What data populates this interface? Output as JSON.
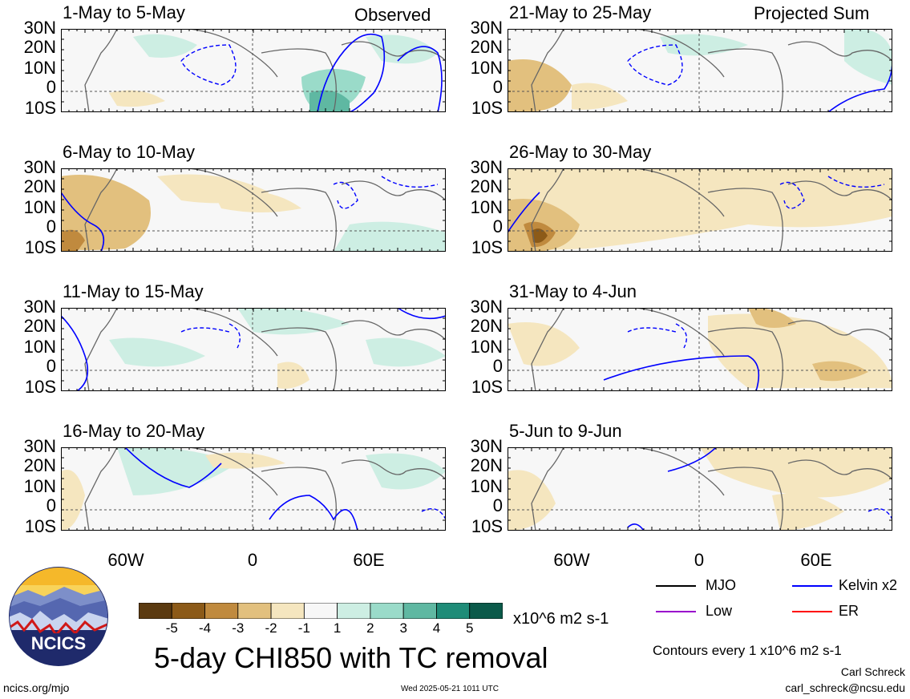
{
  "left_header": "Observed",
  "right_header": "Projected Sum",
  "lat_ticks": [
    "30N",
    "20N",
    "10N",
    "0",
    "10S"
  ],
  "lon_ticks": [
    "60W",
    "0",
    "60E"
  ],
  "panels_left": [
    {
      "title": "1-May to 5-May"
    },
    {
      "title": "6-May to 10-May"
    },
    {
      "title": "11-May to 15-May"
    },
    {
      "title": "16-May to 20-May"
    }
  ],
  "panels_right": [
    {
      "title": "21-May to 25-May"
    },
    {
      "title": "26-May to 30-May"
    },
    {
      "title": "31-May to 4-Jun"
    },
    {
      "title": "5-Jun to 9-Jun"
    }
  ],
  "colorbar": {
    "labels": [
      "-5",
      "-4",
      "-3",
      "-2",
      "-1",
      "1",
      "2",
      "3",
      "4",
      "5"
    ],
    "units": "x10^6 m2 s-1",
    "colors": [
      "#5b3a10",
      "#8c5a18",
      "#c08a3e",
      "#e2c07e",
      "#f5e6bf",
      "#f7f7f7",
      "#cdeee3",
      "#9adbc9",
      "#5fb8a2",
      "#1f8c78",
      "#0b5a4a"
    ]
  },
  "main_title": "5-day CHI850 with TC removal",
  "legend": {
    "items": [
      {
        "label": "MJO",
        "color": "#000000"
      },
      {
        "label": "Kelvin x2",
        "color": "#0000ff"
      },
      {
        "label": "Low",
        "color": "#9900cc"
      },
      {
        "label": "ER",
        "color": "#ff0000"
      }
    ],
    "contour_note": "Contours every 1 x10^6 m2 s-1"
  },
  "logo_text": "NCICS",
  "footer": {
    "url": "ncics.org/mjo",
    "timestamp": "Wed 2025-05-21 1011 UTC",
    "author": "Carl Schreck",
    "email": "carl_schreck@ncsu.edu"
  }
}
